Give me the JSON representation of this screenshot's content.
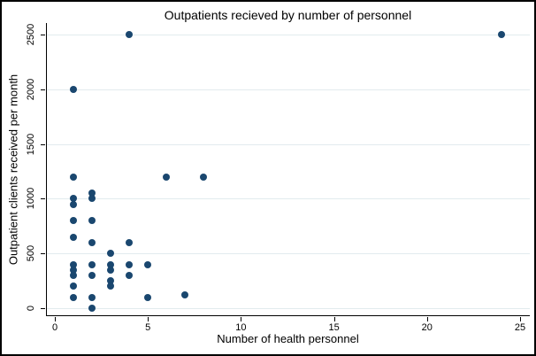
{
  "chart_data": {
    "type": "scatter",
    "title": "Outpatients recieved by number of personnel",
    "xlabel": "Number of health personnel",
    "ylabel": "Outpatient clients received per month",
    "xlim": [
      0,
      25
    ],
    "ylim": [
      0,
      2500
    ],
    "x_ticks": [
      0,
      5,
      10,
      15,
      20,
      25
    ],
    "y_ticks": [
      0,
      500,
      1000,
      1500,
      2000,
      2500
    ],
    "grid": "horizontal",
    "legend": "none",
    "marker_color": "#1a476f",
    "gridline_color": "#e2ebee",
    "points": [
      {
        "x": 1,
        "y": 2000
      },
      {
        "x": 1,
        "y": 1200
      },
      {
        "x": 1,
        "y": 1000
      },
      {
        "x": 1,
        "y": 950
      },
      {
        "x": 1,
        "y": 800
      },
      {
        "x": 1,
        "y": 650
      },
      {
        "x": 1,
        "y": 400
      },
      {
        "x": 1,
        "y": 350
      },
      {
        "x": 1,
        "y": 300
      },
      {
        "x": 1,
        "y": 200
      },
      {
        "x": 1,
        "y": 100
      },
      {
        "x": 2,
        "y": 1050
      },
      {
        "x": 2,
        "y": 1000
      },
      {
        "x": 2,
        "y": 800
      },
      {
        "x": 2,
        "y": 600
      },
      {
        "x": 2,
        "y": 400
      },
      {
        "x": 2,
        "y": 300
      },
      {
        "x": 2,
        "y": 100
      },
      {
        "x": 2,
        "y": 0
      },
      {
        "x": 3,
        "y": 500
      },
      {
        "x": 3,
        "y": 400
      },
      {
        "x": 3,
        "y": 350
      },
      {
        "x": 3,
        "y": 250
      },
      {
        "x": 3,
        "y": 200
      },
      {
        "x": 4,
        "y": 2500
      },
      {
        "x": 4,
        "y": 600
      },
      {
        "x": 4,
        "y": 400
      },
      {
        "x": 4,
        "y": 300
      },
      {
        "x": 5,
        "y": 400
      },
      {
        "x": 5,
        "y": 100
      },
      {
        "x": 6,
        "y": 1200
      },
      {
        "x": 7,
        "y": 120
      },
      {
        "x": 8,
        "y": 1200
      },
      {
        "x": 24,
        "y": 2500
      }
    ]
  }
}
